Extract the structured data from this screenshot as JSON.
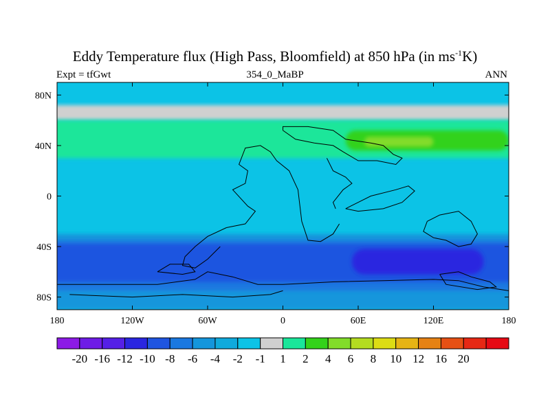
{
  "title": {
    "prefix": "Eddy Temperature flux (High Pass, Bloomfield) at 850 hPa (in ms",
    "exponent": "-1",
    "suffix": "K)"
  },
  "subtitle": {
    "left": "Expt = tfGwt",
    "center": "354_0_MaBP",
    "right": "ANN"
  },
  "chart_data": {
    "type": "heatmap",
    "title": "Eddy Temperature flux (High Pass, Bloomfield) at 850 hPa (in ms-1K)",
    "experiment": "Expt = tfGwt",
    "run": "354_0_MaBP",
    "period": "ANN",
    "x_range": [
      -180,
      180
    ],
    "y_range": [
      -90,
      90
    ],
    "x_ticks": [
      {
        "value": -180,
        "label": "180"
      },
      {
        "value": -120,
        "label": "120W"
      },
      {
        "value": -60,
        "label": "60W"
      },
      {
        "value": 0,
        "label": "0"
      },
      {
        "value": 60,
        "label": "60E"
      },
      {
        "value": 120,
        "label": "120E"
      },
      {
        "value": 180,
        "label": "180"
      }
    ],
    "y_ticks": [
      {
        "value": 80,
        "label": "80N"
      },
      {
        "value": 40,
        "label": "40N"
      },
      {
        "value": 0,
        "label": "0"
      },
      {
        "value": -40,
        "label": "40S"
      },
      {
        "value": -80,
        "label": "80S"
      }
    ],
    "colorbar": {
      "labels": [
        "-20",
        "-16",
        "-12",
        "-10",
        "-8",
        "-6",
        "-4",
        "-2",
        "-1",
        "1",
        "2",
        "4",
        "6",
        "8",
        "10",
        "12",
        "16",
        "20"
      ],
      "colors": [
        "#8c1ae6",
        "#6e1ce6",
        "#5520e6",
        "#2a26e0",
        "#1f55e0",
        "#1a78e0",
        "#1496dc",
        "#10aadc",
        "#0cc3e6",
        "#d0d0d0",
        "#1ae69a",
        "#33d21a",
        "#82dc2a",
        "#b4dc20",
        "#dcdc14",
        "#e6b414",
        "#e68214",
        "#e65014",
        "#e62814",
        "#e60a14"
      ]
    },
    "bands": [
      {
        "lat_range": [
          60,
          72
        ],
        "level": 1,
        "label": "1 to 2"
      },
      {
        "lat_range": [
          30,
          60
        ],
        "level": 2,
        "label": "2 to 4"
      },
      {
        "lat_range": [
          36,
          52
        ],
        "lon_range": [
          50,
          180
        ],
        "level": 3,
        "label": "4 to 6"
      },
      {
        "lat_range": [
          39,
          47
        ],
        "lon_range": [
          65,
          120
        ],
        "level": 4,
        "label": "6 to 8"
      },
      {
        "lat_range": [
          -90,
          -30
        ],
        "level": -2,
        "label": "-4 to -2"
      },
      {
        "lat_range": [
          -75,
          -35
        ],
        "level": -3,
        "label": "-6 to -4"
      },
      {
        "lat_range": [
          -68,
          -38
        ],
        "level": -4,
        "label": "-8 to -6"
      },
      {
        "lat_range": [
          -62,
          -42
        ],
        "lon_range": [
          55,
          160
        ],
        "level": -5,
        "label": "-10 to -8"
      }
    ]
  }
}
